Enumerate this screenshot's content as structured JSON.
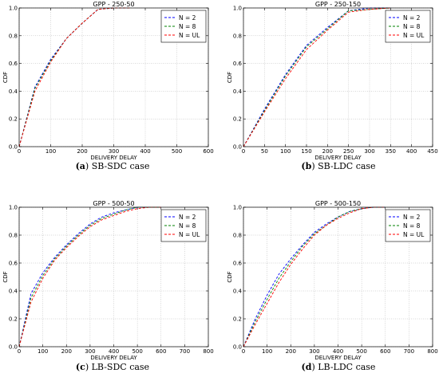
{
  "chart_data": [
    {
      "type": "line",
      "title": "GPP - 250-50",
      "xlabel": "DELIVERY DELAY",
      "ylabel": "CDF",
      "xlim": [
        0,
        600
      ],
      "ylim": [
        0,
        1.0
      ],
      "xticks": [
        "0",
        "100",
        "200",
        "300",
        "400",
        "500",
        "600"
      ],
      "yticks": [
        "0.0",
        "0.2",
        "0.4",
        "0.6",
        "0.8",
        "1.0"
      ],
      "grid": true,
      "legend_position": "top-right",
      "caption_label": "(a)",
      "caption_text": "SB-SDC case",
      "series": [
        {
          "name": "N = 2",
          "color": "#0000ff",
          "x": [
            0,
            50,
            100,
            150,
            200,
            250,
            300,
            350
          ],
          "y": [
            0,
            0.43,
            0.63,
            0.78,
            0.89,
            0.99,
            1.0,
            1.0
          ]
        },
        {
          "name": "N = 8",
          "color": "#008000",
          "x": [
            0,
            50,
            100,
            150,
            200,
            250,
            300,
            350
          ],
          "y": [
            0,
            0.42,
            0.62,
            0.78,
            0.89,
            0.99,
            1.0,
            1.0
          ]
        },
        {
          "name": "N = UL",
          "color": "#ff0000",
          "x": [
            0,
            50,
            100,
            150,
            200,
            250,
            300,
            350
          ],
          "y": [
            0,
            0.4,
            0.61,
            0.78,
            0.89,
            0.99,
            1.0,
            1.0
          ]
        }
      ]
    },
    {
      "type": "line",
      "title": "GPP - 250-150",
      "xlabel": "DELIVERY DELAY",
      "ylabel": "CDF",
      "xlim": [
        0,
        450
      ],
      "ylim": [
        0,
        1.0
      ],
      "xticks": [
        "0",
        "50",
        "100",
        "150",
        "200",
        "250",
        "300",
        "350",
        "400",
        "450"
      ],
      "yticks": [
        "0.0",
        "0.2",
        "0.4",
        "0.6",
        "0.8",
        "1.0"
      ],
      "grid": true,
      "legend_position": "top-right",
      "caption_label": "(b)",
      "caption_text": "SB-LDC case",
      "series": [
        {
          "name": "N = 2",
          "color": "#0000ff",
          "x": [
            0,
            50,
            100,
            150,
            200,
            250,
            300,
            350
          ],
          "y": [
            0,
            0.27,
            0.52,
            0.73,
            0.86,
            0.98,
            1.0,
            1.0
          ]
        },
        {
          "name": "N = 8",
          "color": "#008000",
          "x": [
            0,
            50,
            100,
            150,
            200,
            250,
            300,
            350
          ],
          "y": [
            0,
            0.26,
            0.51,
            0.72,
            0.85,
            0.98,
            0.99,
            1.0
          ]
        },
        {
          "name": "N = UL",
          "color": "#ff0000",
          "x": [
            0,
            50,
            100,
            150,
            200,
            250,
            300,
            350
          ],
          "y": [
            0,
            0.25,
            0.49,
            0.7,
            0.84,
            0.97,
            0.99,
            1.0
          ]
        }
      ]
    },
    {
      "type": "line",
      "title": "GPP - 500-50",
      "xlabel": "DELIVERY DELAY",
      "ylabel": "CDF",
      "xlim": [
        0,
        800
      ],
      "ylim": [
        0,
        1.0
      ],
      "xticks": [
        "0",
        "100",
        "200",
        "300",
        "400",
        "500",
        "600",
        "700",
        "800"
      ],
      "yticks": [
        "0.0",
        "0.2",
        "0.4",
        "0.6",
        "0.8",
        "1.0"
      ],
      "grid": true,
      "legend_position": "top-right",
      "caption_label": "(c)",
      "caption_text": "LB-SDC case",
      "series": [
        {
          "name": "N = 2",
          "color": "#0000ff",
          "x": [
            0,
            50,
            100,
            150,
            200,
            250,
            300,
            350,
            400,
            450,
            500,
            550,
            600
          ],
          "y": [
            0,
            0.38,
            0.53,
            0.64,
            0.73,
            0.81,
            0.88,
            0.93,
            0.96,
            0.98,
            1.0,
            1.0,
            1.0
          ]
        },
        {
          "name": "N = 8",
          "color": "#008000",
          "x": [
            0,
            50,
            100,
            150,
            200,
            250,
            300,
            350,
            400,
            450,
            500,
            550,
            600
          ],
          "y": [
            0,
            0.35,
            0.51,
            0.63,
            0.72,
            0.8,
            0.87,
            0.92,
            0.95,
            0.98,
            1.0,
            1.0,
            1.0
          ]
        },
        {
          "name": "N = UL",
          "color": "#ff0000",
          "x": [
            0,
            50,
            100,
            150,
            200,
            250,
            300,
            350,
            400,
            450,
            500,
            550,
            600
          ],
          "y": [
            0,
            0.32,
            0.49,
            0.62,
            0.71,
            0.79,
            0.86,
            0.91,
            0.94,
            0.97,
            0.99,
            1.0,
            1.0
          ]
        }
      ]
    },
    {
      "type": "line",
      "title": "GPP - 500-150",
      "xlabel": "DELIVERY DELAY",
      "ylabel": "CDF",
      "xlim": [
        0,
        800
      ],
      "ylim": [
        0,
        1.0
      ],
      "xticks": [
        "0",
        "100",
        "200",
        "300",
        "400",
        "500",
        "600",
        "700",
        "800"
      ],
      "yticks": [
        "0.0",
        "0.2",
        "0.4",
        "0.6",
        "0.8",
        "1.0"
      ],
      "grid": true,
      "legend_position": "top-right",
      "caption_label": "(d)",
      "caption_text": "LB-LDC case",
      "series": [
        {
          "name": "N = 2",
          "color": "#0000ff",
          "x": [
            0,
            50,
            100,
            150,
            200,
            250,
            300,
            350,
            400,
            450,
            500,
            550,
            600
          ],
          "y": [
            0,
            0.2,
            0.37,
            0.52,
            0.63,
            0.73,
            0.82,
            0.88,
            0.93,
            0.97,
            0.99,
            1.0,
            1.0
          ]
        },
        {
          "name": "N = 8",
          "color": "#008000",
          "x": [
            0,
            50,
            100,
            150,
            200,
            250,
            300,
            350,
            400,
            450,
            500,
            550,
            600
          ],
          "y": [
            0,
            0.18,
            0.34,
            0.49,
            0.61,
            0.72,
            0.81,
            0.87,
            0.93,
            0.97,
            0.99,
            1.0,
            1.0
          ]
        },
        {
          "name": "N = UL",
          "color": "#ff0000",
          "x": [
            0,
            50,
            100,
            150,
            200,
            250,
            300,
            350,
            400,
            450,
            500,
            550,
            600
          ],
          "y": [
            0,
            0.16,
            0.31,
            0.46,
            0.59,
            0.7,
            0.8,
            0.87,
            0.92,
            0.96,
            0.99,
            1.0,
            1.0
          ]
        }
      ]
    }
  ]
}
